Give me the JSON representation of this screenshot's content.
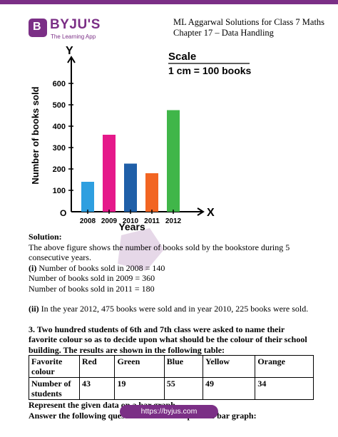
{
  "brand": {
    "name": "BYJU'S",
    "mark": "B",
    "tagline": "The Learning App",
    "color": "#7b2f86"
  },
  "header": {
    "line1": "ML Aggarwal Solutions for Class 7 Maths",
    "line2": "Chapter 17 – Data Handling"
  },
  "chart_data": {
    "type": "bar",
    "categories": [
      "2008",
      "2009",
      "2010",
      "2011",
      "2012"
    ],
    "values": [
      140,
      360,
      225,
      180,
      475
    ],
    "colors": [
      "#2e9fe0",
      "#e5198a",
      "#1f5fa8",
      "#f26522",
      "#40b649"
    ],
    "ylabel": "Number of books sold",
    "xlabel": "Years",
    "y_axis_letter": "Y",
    "x_axis_letter": "X",
    "origin_label": "O",
    "yticks": [
      100,
      200,
      300,
      400,
      500,
      600
    ],
    "ylim": [
      0,
      700
    ],
    "scale_title": "Scale",
    "scale_text": "1 cm = 100 books"
  },
  "content": {
    "solution_heading": "Solution:",
    "solution_text": "The above figure shows the number of books sold by the bookstore during 5 consecutive years.",
    "part_i_label": "(i)",
    "part_i_line1": "Number of books sold in 2008 = 140",
    "part_i_line2": "Number of books sold in 2009 = 360",
    "part_i_line3": "Number of books sold in 2011 = 180",
    "part_ii_label": "(ii)",
    "part_ii_text": "In the year 2012, 475 books were sold and in year 2010, 225 books were sold.",
    "question3": "3. Two hundred students of 6th and 7th class were asked to name their favorite colour so as to decide upon what should be the colour of their school building. The results are shown in the following table:",
    "table": {
      "row1": [
        "Favorite colour",
        "Red",
        "Green",
        "Blue",
        "Yellow",
        "Orange"
      ],
      "row2": [
        "Number of students",
        "43",
        "19",
        "55",
        "49",
        "34"
      ]
    },
    "represent_text": "Represent the given data on a bar graph.",
    "answer_text": "Answer the following questions with the help of the bar graph:"
  },
  "footer": {
    "url": "https://byjus.com"
  }
}
